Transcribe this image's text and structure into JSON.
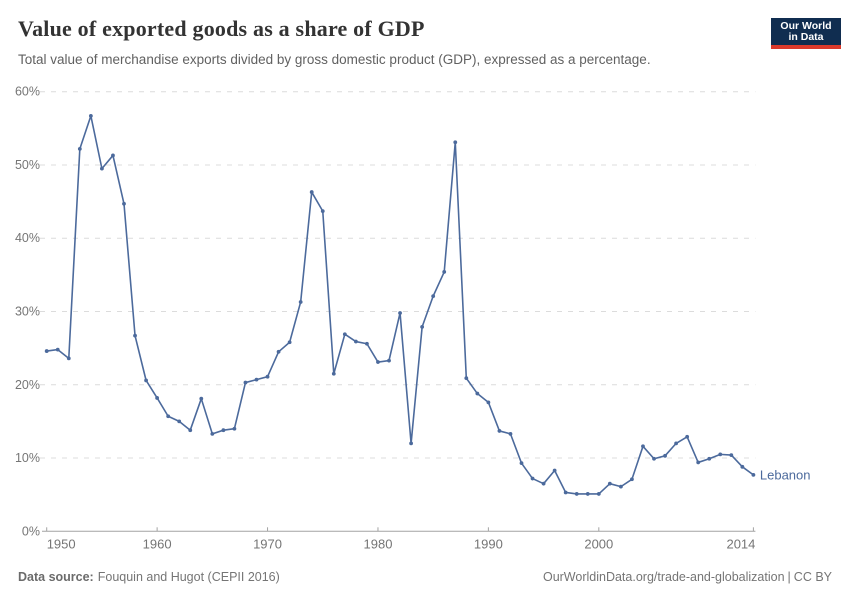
{
  "header": {
    "title": "Value of exported goods as a share of GDP",
    "subtitle": "Total value of merchandise exports divided by gross domestic product (GDP), expressed as a percentage.",
    "logo": {
      "line1": "Our World",
      "line2": "in Data"
    }
  },
  "footer": {
    "source_label": "Data source:",
    "source_value": "Fouquin and Hugot (CEPII 2016)",
    "site_url": "OurWorldinData.org/trade-and-globalization",
    "separator": "|",
    "license": "CC BY"
  },
  "colors": {
    "series": "#4C6A9C",
    "grid": "#dcdcdc",
    "axis": "#a3a3a3",
    "tick_text": "#757575",
    "logo_bg": "#102d50",
    "logo_red": "#dc3a2c"
  },
  "chart_data": {
    "type": "line",
    "title": "Value of exported goods as a share of GDP",
    "xlabel": "",
    "ylabel": "",
    "xlim": [
      1950,
      2014
    ],
    "ylim": [
      0,
      60
    ],
    "x_ticks": [
      1950,
      1960,
      1970,
      1980,
      1990,
      2000,
      2014
    ],
    "y_ticks": [
      0,
      10,
      20,
      30,
      40,
      50,
      60
    ],
    "y_tick_suffix": "%",
    "grid": "horizontal-dashed",
    "legend_position": "end-of-line-label",
    "series": [
      {
        "name": "Lebanon",
        "color": "#4C6A9C",
        "x": [
          1950,
          1951,
          1952,
          1953,
          1954,
          1955,
          1956,
          1957,
          1958,
          1959,
          1960,
          1961,
          1962,
          1963,
          1964,
          1965,
          1966,
          1967,
          1968,
          1969,
          1970,
          1971,
          1972,
          1973,
          1974,
          1975,
          1976,
          1977,
          1978,
          1979,
          1980,
          1981,
          1982,
          1983,
          1984,
          1985,
          1986,
          1987,
          1988,
          1989,
          1990,
          1991,
          1992,
          1993,
          1994,
          1995,
          1996,
          1997,
          1998,
          1999,
          2000,
          2001,
          2002,
          2003,
          2004,
          2005,
          2006,
          2007,
          2008,
          2009,
          2010,
          2011,
          2012,
          2013,
          2014
        ],
        "values": [
          24.6,
          24.8,
          23.6,
          52.2,
          56.7,
          49.5,
          51.3,
          44.7,
          26.7,
          20.6,
          18.2,
          15.7,
          15.0,
          13.8,
          18.1,
          13.3,
          13.8,
          14.0,
          20.3,
          20.7,
          21.1,
          24.5,
          25.8,
          31.3,
          46.3,
          43.7,
          21.5,
          26.9,
          25.9,
          25.6,
          23.1,
          23.3,
          29.8,
          12.0,
          27.9,
          32.1,
          35.4,
          53.1,
          20.9,
          18.8,
          17.6,
          13.7,
          13.3,
          9.3,
          7.2,
          6.5,
          8.3,
          5.3,
          5.1,
          5.1,
          5.1,
          6.5,
          6.1,
          7.1,
          11.6,
          9.9,
          10.3,
          12.0,
          12.9,
          9.4,
          9.9,
          10.5,
          10.4,
          8.8,
          7.7
        ]
      }
    ]
  }
}
